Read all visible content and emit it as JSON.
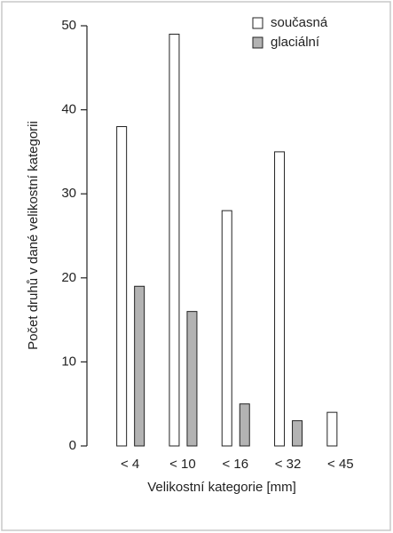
{
  "chart_data": {
    "type": "bar",
    "y_label": "Počet druhů v dané velikostní kategorii",
    "x_label": "Velikostní kategorie [mm]",
    "categories": [
      "< 4",
      "< 10",
      "< 16",
      "< 32",
      "< 45"
    ],
    "series": [
      {
        "name": "současná",
        "color": "#ffffff",
        "values": [
          38,
          49,
          28,
          35,
          4
        ]
      },
      {
        "name": "glaciální",
        "color": "#b3b3b3",
        "values": [
          19,
          16,
          5,
          3,
          0
        ]
      }
    ],
    "ylim": [
      0,
      50
    ],
    "yticks": [
      0,
      10,
      20,
      30,
      40,
      50
    ]
  }
}
